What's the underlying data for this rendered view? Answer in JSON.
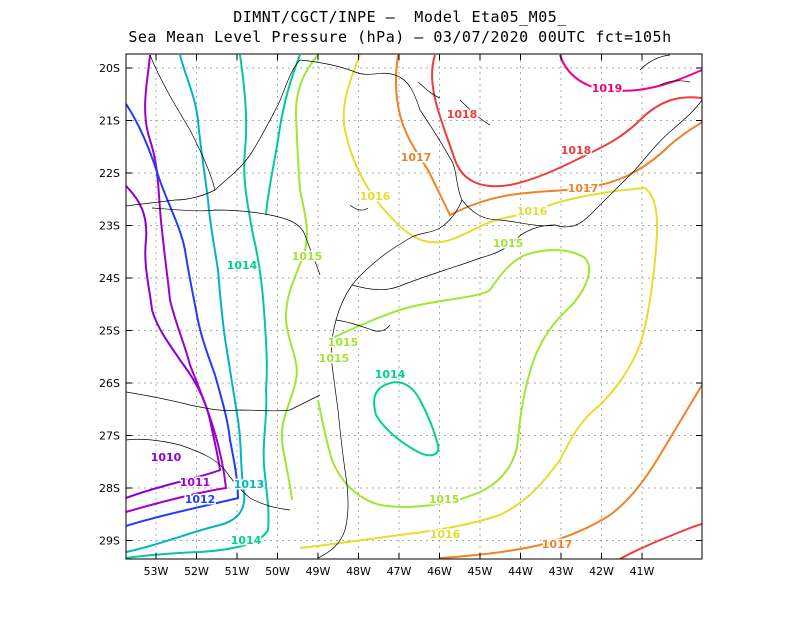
{
  "title_line1": "DIMNT/CGCT/INPE –  Model Eta05_M05_",
  "title_line2": "Sea Mean Level Pressure (hPa) – 03/07/2020 00UTC fct=105h",
  "lon_ticks": [
    "53W",
    "52W",
    "51W",
    "50W",
    "49W",
    "48W",
    "47W",
    "46W",
    "45W",
    "44W",
    "43W",
    "42W",
    "41W"
  ],
  "lat_ticks": [
    "20S",
    "21S",
    "22S",
    "23S",
    "24S",
    "25S",
    "26S",
    "27S",
    "28S",
    "29S"
  ],
  "colors": {
    "1010": "#8a00d4",
    "1011": "#a000c8",
    "1012": "#1e3cff",
    "1013": "#00b4c8",
    "1014": "#00d28c",
    "1015": "#a0e632",
    "1016": "#e6dc32",
    "1017": "#f08228",
    "1018": "#f03c3c",
    "1019": "#f00082"
  },
  "contour_labels": [
    {
      "text": "1010",
      "level": "1010"
    },
    {
      "text": "1011",
      "level": "1011"
    },
    {
      "text": "1012",
      "level": "1012"
    },
    {
      "text": "1013",
      "level": "1013"
    },
    {
      "text": "1014",
      "level": "1014"
    },
    {
      "text": "1014",
      "level": "1014"
    },
    {
      "text": "1014",
      "level": "1014"
    },
    {
      "text": "1015",
      "level": "1015"
    },
    {
      "text": "1015",
      "level": "1015"
    },
    {
      "text": "1015",
      "level": "1015"
    },
    {
      "text": "1015",
      "level": "1015"
    },
    {
      "text": "1015",
      "level": "1015"
    },
    {
      "text": "1016",
      "level": "1016"
    },
    {
      "text": "1016",
      "level": "1016"
    },
    {
      "text": "1016",
      "level": "1016"
    },
    {
      "text": "1017",
      "level": "1017"
    },
    {
      "text": "1017",
      "level": "1017"
    },
    {
      "text": "1017",
      "level": "1017"
    },
    {
      "text": "1018",
      "level": "1018"
    },
    {
      "text": "1018",
      "level": "1018"
    },
    {
      "text": "1019",
      "level": "1019"
    }
  ]
}
